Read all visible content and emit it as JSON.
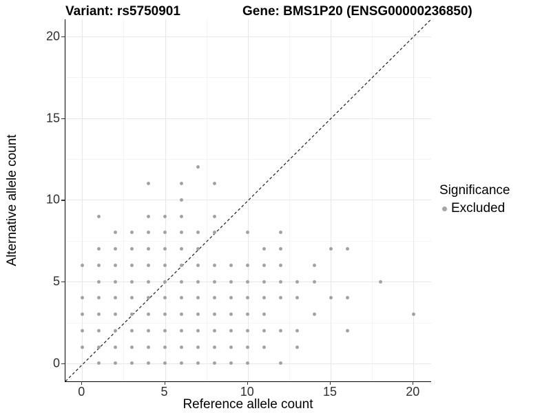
{
  "header": {
    "variant_title": "Variant: rs5750901",
    "gene_title": "Gene: BMS1P20 (ENSG00000236850)"
  },
  "legend": {
    "title": "Significance",
    "items": [
      {
        "label": "Excluded",
        "color": "#a5a5a5"
      }
    ]
  },
  "colors": {
    "point": "#a2a2a2",
    "grid_major": "#e7e7e7",
    "grid_minor": "#f3f3f3",
    "axis_line": "#000000",
    "identity_line": "#1a1a1a",
    "tick_text": "#303030"
  },
  "chart_data": {
    "type": "scatter",
    "title": "Variant: rs5750901 — Gene: BMS1P20 (ENSG00000236850)",
    "xlabel": "Reference allele count",
    "ylabel": "Alternative allele count",
    "x_ticks": [
      0,
      5,
      10,
      15,
      20
    ],
    "y_ticks": [
      0,
      5,
      10,
      15,
      20
    ],
    "x_minor_ticks": [
      2.5,
      7.5,
      12.5,
      17.5
    ],
    "y_minor_ticks": [
      2.5,
      7.5,
      12.5,
      17.5
    ],
    "xlim": [
      -1.05,
      21.05
    ],
    "ylim": [
      -1.05,
      21.05
    ],
    "grid": true,
    "legend_position": "right",
    "identity_line": {
      "equation": "y = x",
      "style": "dashed"
    },
    "series": [
      {
        "name": "Excluded",
        "color": "#a2a2a2",
        "points": [
          [
            1,
            0
          ],
          [
            2,
            0
          ],
          [
            3,
            0
          ],
          [
            4,
            0
          ],
          [
            5,
            0
          ],
          [
            6,
            0
          ],
          [
            7,
            0
          ],
          [
            8,
            0
          ],
          [
            9,
            0
          ],
          [
            10,
            0
          ],
          [
            12,
            0
          ],
          [
            0,
            1
          ],
          [
            1,
            1
          ],
          [
            2,
            1
          ],
          [
            3,
            1
          ],
          [
            4,
            1
          ],
          [
            5,
            1
          ],
          [
            6,
            1
          ],
          [
            7,
            1
          ],
          [
            8,
            1
          ],
          [
            9,
            1
          ],
          [
            10,
            1
          ],
          [
            11,
            1
          ],
          [
            13,
            1
          ],
          [
            0,
            2
          ],
          [
            1,
            2
          ],
          [
            2,
            2
          ],
          [
            3,
            2
          ],
          [
            4,
            2
          ],
          [
            5,
            2
          ],
          [
            6,
            2
          ],
          [
            7,
            2
          ],
          [
            8,
            2
          ],
          [
            9,
            2
          ],
          [
            10,
            2
          ],
          [
            11,
            2
          ],
          [
            12,
            2
          ],
          [
            13,
            2
          ],
          [
            16,
            2
          ],
          [
            0,
            3
          ],
          [
            1,
            3
          ],
          [
            2,
            3
          ],
          [
            3,
            3
          ],
          [
            4,
            3
          ],
          [
            5,
            3
          ],
          [
            6,
            3
          ],
          [
            7,
            3
          ],
          [
            8,
            3
          ],
          [
            9,
            3
          ],
          [
            10,
            3
          ],
          [
            11,
            3
          ],
          [
            14,
            3
          ],
          [
            20,
            3
          ],
          [
            0,
            4
          ],
          [
            1,
            4
          ],
          [
            2,
            4
          ],
          [
            3,
            4
          ],
          [
            4,
            4
          ],
          [
            5,
            4
          ],
          [
            6,
            4
          ],
          [
            7,
            4
          ],
          [
            8,
            4
          ],
          [
            9,
            4
          ],
          [
            10,
            4
          ],
          [
            11,
            4
          ],
          [
            12,
            4
          ],
          [
            13,
            4
          ],
          [
            15,
            4
          ],
          [
            16,
            4
          ],
          [
            1,
            5
          ],
          [
            2,
            5
          ],
          [
            3,
            5
          ],
          [
            4,
            5
          ],
          [
            5,
            5
          ],
          [
            6,
            5
          ],
          [
            7,
            5
          ],
          [
            8,
            5
          ],
          [
            9,
            5
          ],
          [
            10,
            5
          ],
          [
            11,
            5
          ],
          [
            12,
            5
          ],
          [
            13,
            5
          ],
          [
            14,
            5
          ],
          [
            18,
            5
          ],
          [
            0,
            6
          ],
          [
            1,
            6
          ],
          [
            2,
            6
          ],
          [
            3,
            6
          ],
          [
            4,
            6
          ],
          [
            5,
            6
          ],
          [
            6,
            6
          ],
          [
            7,
            6
          ],
          [
            8,
            6
          ],
          [
            9,
            6
          ],
          [
            10,
            6
          ],
          [
            11,
            6
          ],
          [
            12,
            6
          ],
          [
            14,
            6
          ],
          [
            1,
            7
          ],
          [
            2,
            7
          ],
          [
            3,
            7
          ],
          [
            4,
            7
          ],
          [
            5,
            7
          ],
          [
            6,
            7
          ],
          [
            7,
            7
          ],
          [
            11,
            7
          ],
          [
            12,
            7
          ],
          [
            15,
            7
          ],
          [
            16,
            7
          ],
          [
            2,
            8
          ],
          [
            3,
            8
          ],
          [
            4,
            8
          ],
          [
            5,
            8
          ],
          [
            6,
            8
          ],
          [
            7,
            8
          ],
          [
            8,
            8
          ],
          [
            10,
            8
          ],
          [
            12,
            8
          ],
          [
            1,
            9
          ],
          [
            4,
            9
          ],
          [
            5,
            9
          ],
          [
            6,
            9
          ],
          [
            8,
            9
          ],
          [
            6,
            10
          ],
          [
            4,
            11
          ],
          [
            6,
            11
          ],
          [
            8,
            11
          ],
          [
            7,
            12
          ]
        ]
      }
    ]
  }
}
